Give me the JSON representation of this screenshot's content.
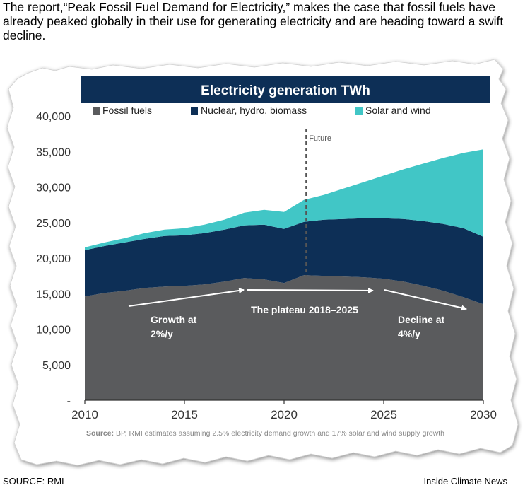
{
  "headline": "The report,“Peak Fossil Fuel Demand for Electricity,” makes the case that fossil fuels have already peaked globally in their use for generating electricity and are heading toward a swift decline.",
  "footer": {
    "source": "SOURCE: RMI",
    "credit": "Inside Climate News"
  },
  "colors": {
    "fossil": "#5a5b5d",
    "nuclear": "#0d2f56",
    "solar": "#41c6c6",
    "banner": "#0d2f56"
  },
  "chart_data": {
    "type": "area",
    "stacked": true,
    "title": "Electricity generation TWh",
    "x": [
      2010,
      2011,
      2012,
      2013,
      2014,
      2015,
      2016,
      2017,
      2018,
      2019,
      2020,
      2021,
      2022,
      2023,
      2024,
      2025,
      2026,
      2027,
      2028,
      2029,
      2030
    ],
    "series": [
      {
        "name": "Fossil fuels",
        "values": [
          14600,
          15100,
          15400,
          15800,
          16000,
          16100,
          16300,
          16700,
          17200,
          17000,
          16500,
          17600,
          17500,
          17400,
          17300,
          17100,
          16700,
          16100,
          15400,
          14500,
          13500
        ]
      },
      {
        "name": "Nuclear, hydro, biomass",
        "values": [
          6500,
          6600,
          6800,
          6900,
          7100,
          7100,
          7200,
          7300,
          7400,
          7700,
          7600,
          7500,
          7900,
          8100,
          8300,
          8500,
          8800,
          9100,
          9400,
          9700,
          9500
        ]
      },
      {
        "name": "Solar and wind",
        "values": [
          400,
          500,
          600,
          800,
          900,
          1000,
          1200,
          1400,
          1800,
          2100,
          2400,
          3100,
          3500,
          4300,
          5100,
          6000,
          7000,
          8100,
          9300,
          10600,
          12300
        ]
      }
    ],
    "xticks": [
      "2010",
      "2015",
      "2020",
      "2025",
      "2030"
    ],
    "yticks": [
      "-",
      "5,000",
      "10,000",
      "15,000",
      "20,000",
      "25,000",
      "30,000",
      "35,000",
      "40,000"
    ],
    "xlim": [
      2010,
      2030
    ],
    "ylim": [
      0,
      40000
    ],
    "future_marker": {
      "year": 2021,
      "label": "Future"
    },
    "annotations": [
      {
        "line1": "Growth at",
        "line2": "2%/y"
      },
      {
        "line1": "The plateau 2018–2025",
        "line2": ""
      },
      {
        "line1": "Decline at",
        "line2": "4%/y"
      }
    ],
    "source_label": "Source:",
    "source_text": " BP, RMI estimates assuming 2.5% electricity demand growth and 17% solar and wind supply growth"
  }
}
